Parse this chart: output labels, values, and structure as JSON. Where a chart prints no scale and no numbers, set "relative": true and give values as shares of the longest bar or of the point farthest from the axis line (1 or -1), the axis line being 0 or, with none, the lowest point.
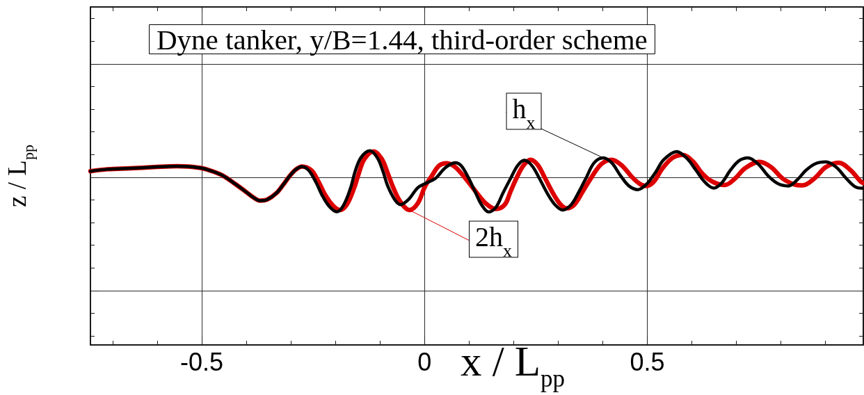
{
  "chart_data": {
    "type": "line",
    "title": "Dyne tanker, y/B=1.44, third-order scheme",
    "xlabel": "x / L$_{pp}$",
    "ylabel": "z / L$_{pp}$",
    "relative": true,
    "xlim": [
      -0.75,
      0.985
    ],
    "xticks": [
      {
        "value": -0.7,
        "label": null
      },
      {
        "value": -0.6,
        "label": null
      },
      -0.5,
      {
        "value": -0.4,
        "label": null
      },
      {
        "value": -0.3,
        "label": null
      },
      {
        "value": -0.2,
        "label": null
      },
      {
        "value": -0.1,
        "label": null
      },
      0,
      {
        "value": 0.1,
        "label": null
      },
      {
        "value": 0.2,
        "label": null
      },
      {
        "value": 0.3,
        "label": null
      },
      {
        "value": 0.4,
        "label": null
      },
      0.5,
      {
        "value": 0.6,
        "label": null
      },
      {
        "value": 0.7,
        "label": null
      },
      {
        "value": 0.8,
        "label": null
      },
      {
        "value": 0.9,
        "label": null
      }
    ],
    "grid": true,
    "tick_labels": "x",
    "marker": "none",
    "series": [
      {
        "name": "h$_{x}$",
        "color": "#000000",
        "x": [
          -0.75,
          -0.712,
          -0.66,
          -0.608,
          -0.556,
          -0.53,
          -0.499,
          -0.473,
          -0.452,
          -0.426,
          -0.4,
          -0.385,
          -0.369,
          -0.353,
          -0.332,
          -0.317,
          -0.301,
          -0.288,
          -0.275,
          -0.26,
          -0.244,
          -0.229,
          -0.213,
          -0.197,
          -0.182,
          -0.166,
          -0.156,
          -0.143,
          -0.123,
          -0.106,
          -0.093,
          -0.083,
          -0.067,
          -0.054,
          -0.036,
          -0.015,
          0.004,
          0.024,
          0.043,
          0.056,
          0.069,
          0.082,
          0.098,
          0.115,
          0.128,
          0.144,
          0.16,
          0.176,
          0.193,
          0.209,
          0.224,
          0.241,
          0.258,
          0.277,
          0.293,
          0.31,
          0.329,
          0.345,
          0.362,
          0.381,
          0.401,
          0.42,
          0.44,
          0.459,
          0.479,
          0.498,
          0.518,
          0.537,
          0.566,
          0.589,
          0.609,
          0.628,
          0.649,
          0.667,
          0.687,
          0.706,
          0.726,
          0.749,
          0.771,
          0.794,
          0.817,
          0.836,
          0.856,
          0.878,
          0.901,
          0.924,
          0.947,
          0.969,
          0.985
        ],
        "values": [
          0.895,
          0.905,
          0.91,
          0.916,
          0.921,
          0.919,
          0.91,
          0.892,
          0.871,
          0.831,
          0.787,
          0.761,
          0.743,
          0.749,
          0.783,
          0.826,
          0.875,
          0.905,
          0.919,
          0.899,
          0.839,
          0.767,
          0.711,
          0.686,
          0.719,
          0.809,
          0.892,
          0.964,
          1.0,
          0.964,
          0.892,
          0.821,
          0.749,
          0.723,
          0.749,
          0.81,
          0.834,
          0.857,
          0.905,
          0.928,
          0.939,
          0.924,
          0.864,
          0.782,
          0.722,
          0.685,
          0.708,
          0.782,
          0.857,
          0.924,
          0.951,
          0.924,
          0.857,
          0.775,
          0.722,
          0.695,
          0.722,
          0.782,
          0.857,
          0.939,
          0.964,
          0.939,
          0.872,
          0.819,
          0.8,
          0.827,
          0.887,
          0.954,
          0.996,
          0.961,
          0.901,
          0.842,
          0.808,
          0.834,
          0.901,
          0.949,
          0.964,
          0.932,
          0.872,
          0.83,
          0.819,
          0.849,
          0.899,
          0.934,
          0.943,
          0.916,
          0.857,
          0.812,
          0.807
        ]
      },
      {
        "name": "2h$_{x}$",
        "color": "#dd0000",
        "x": [
          -0.75,
          -0.712,
          -0.66,
          -0.608,
          -0.556,
          -0.53,
          -0.499,
          -0.473,
          -0.452,
          -0.426,
          -0.4,
          -0.385,
          -0.369,
          -0.353,
          -0.332,
          -0.317,
          -0.301,
          -0.288,
          -0.275,
          -0.254,
          -0.239,
          -0.223,
          -0.205,
          -0.19,
          -0.174,
          -0.158,
          -0.148,
          -0.135,
          -0.114,
          -0.096,
          -0.083,
          -0.07,
          -0.054,
          -0.034,
          -0.015,
          0.001,
          0.017,
          0.033,
          0.05,
          0.069,
          0.092,
          0.115,
          0.137,
          0.16,
          0.18,
          0.193,
          0.206,
          0.222,
          0.238,
          0.254,
          0.271,
          0.29,
          0.306,
          0.319,
          0.336,
          0.355,
          0.375,
          0.397,
          0.42,
          0.443,
          0.466,
          0.485,
          0.498,
          0.515,
          0.534,
          0.557,
          0.579,
          0.602,
          0.625,
          0.648,
          0.674,
          0.697,
          0.719,
          0.752,
          0.778,
          0.804,
          0.83,
          0.849,
          0.875,
          0.901,
          0.93,
          0.956,
          0.979,
          0.985
        ],
        "values": [
          0.895,
          0.905,
          0.91,
          0.916,
          0.921,
          0.919,
          0.91,
          0.892,
          0.871,
          0.831,
          0.787,
          0.761,
          0.743,
          0.749,
          0.783,
          0.826,
          0.875,
          0.905,
          0.919,
          0.899,
          0.845,
          0.773,
          0.716,
          0.695,
          0.725,
          0.809,
          0.881,
          0.958,
          0.997,
          0.958,
          0.887,
          0.809,
          0.737,
          0.695,
          0.73,
          0.816,
          0.873,
          0.924,
          0.936,
          0.916,
          0.857,
          0.79,
          0.73,
          0.7,
          0.722,
          0.79,
          0.857,
          0.924,
          0.954,
          0.928,
          0.857,
          0.775,
          0.722,
          0.704,
          0.722,
          0.79,
          0.864,
          0.932,
          0.954,
          0.924,
          0.864,
          0.827,
          0.819,
          0.842,
          0.909,
          0.964,
          0.979,
          0.946,
          0.879,
          0.839,
          0.824,
          0.857,
          0.909,
          0.943,
          0.916,
          0.857,
          0.827,
          0.822,
          0.857,
          0.916,
          0.939,
          0.901,
          0.842,
          0.834
        ]
      }
    ]
  }
}
